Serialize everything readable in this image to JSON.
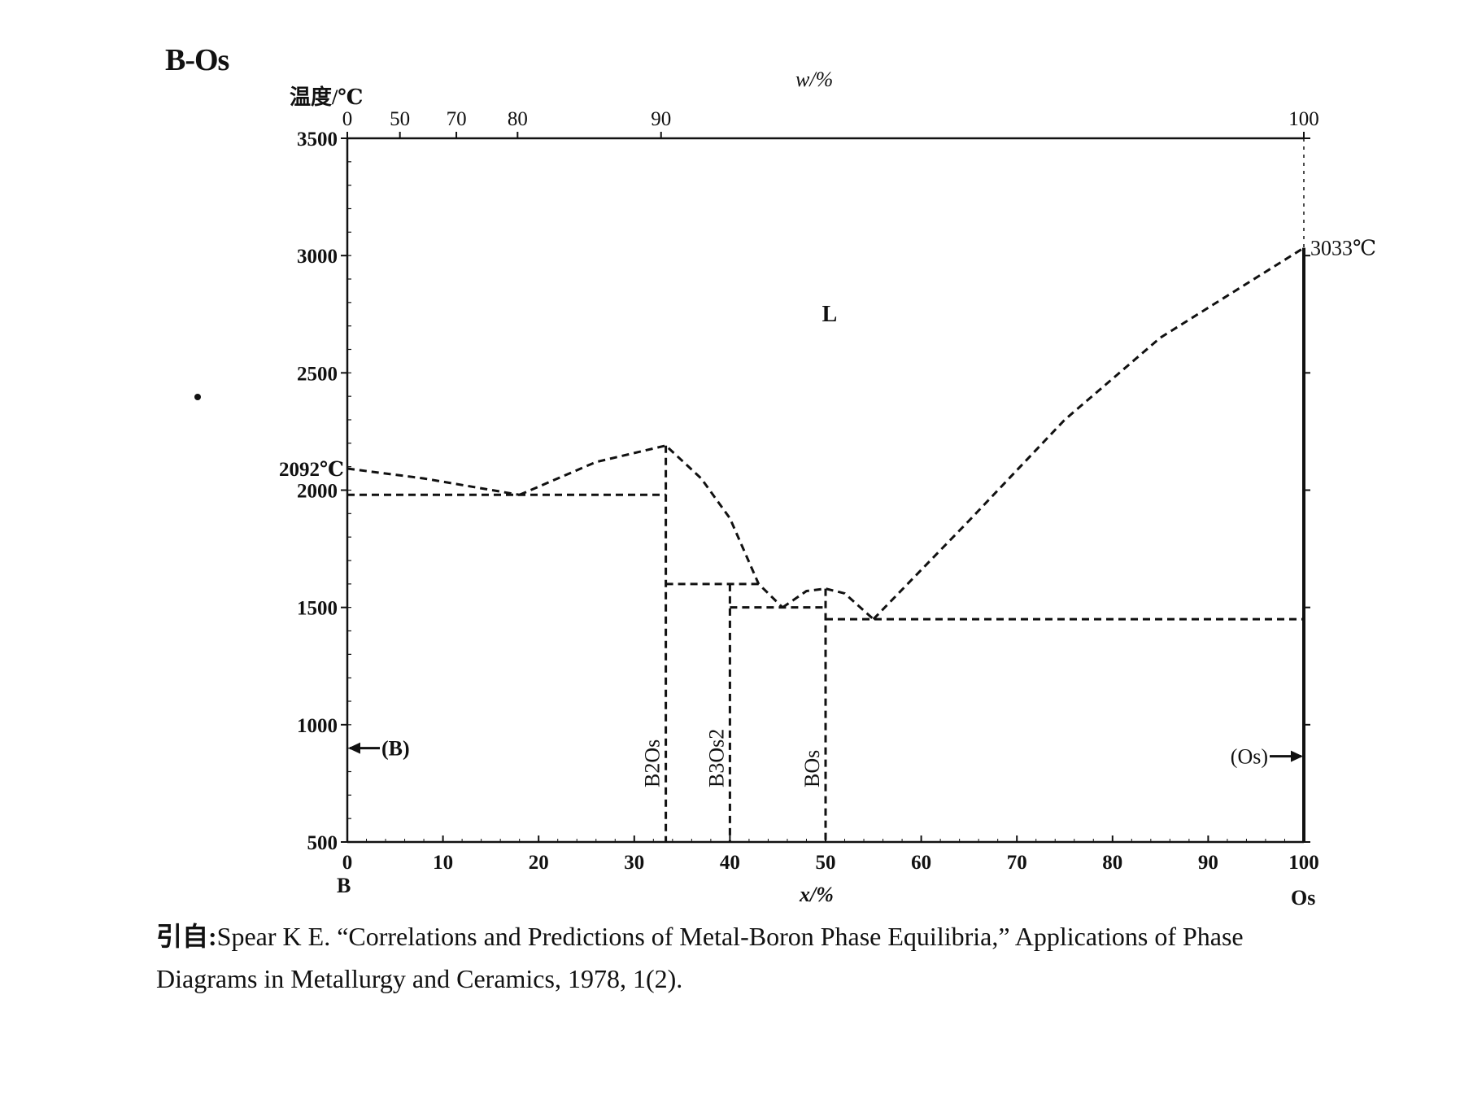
{
  "title": "B-Os",
  "chart_data": {
    "type": "line",
    "title": "B-Os",
    "ylabel": "温度/℃",
    "xlabel_bottom": "x/%",
    "xlabel_top": "w/%",
    "ylim": [
      500,
      3500
    ],
    "xlim": [
      0,
      100
    ],
    "y_ticks": [
      500,
      1000,
      1500,
      2000,
      2500,
      3000,
      3500
    ],
    "x_ticks": [
      0,
      10,
      20,
      30,
      40,
      50,
      60,
      70,
      80,
      90,
      100
    ],
    "top_ticks": [
      {
        "label": "0",
        "x": 0
      },
      {
        "label": "50",
        "x": 5.5
      },
      {
        "label": "70",
        "x": 11.4
      },
      {
        "label": "80",
        "x": 17.8
      },
      {
        "label": "90",
        "x": 32.8
      },
      {
        "label": "100",
        "x": 100
      }
    ],
    "end_labels": {
      "left": "B",
      "right": "Os"
    },
    "melting_points": [
      {
        "label": "2092℃",
        "x": 0,
        "y": 2092
      },
      {
        "label": "3033℃",
        "x": 100,
        "y": 3033
      }
    ],
    "region_labels": [
      {
        "label": "L",
        "x": 50,
        "y": 2720
      }
    ],
    "compounds": [
      {
        "name": "B2Os",
        "sub": "2",
        "base": "B",
        "rest": "Os",
        "x": 33.3,
        "y_top": 2190
      },
      {
        "name": "B3Os2",
        "x": 40,
        "y_top": 1600
      },
      {
        "name": "BOs",
        "x": 50,
        "y_top": 1580
      }
    ],
    "solid_solutions": [
      {
        "label": "(B)",
        "side": "left",
        "y": 900
      },
      {
        "label": "(Os)",
        "side": "right",
        "y": 900
      }
    ],
    "liquidus": [
      [
        [
          0,
          2092
        ],
        [
          8,
          2050
        ],
        [
          18,
          1980
        ]
      ],
      [
        [
          18,
          1980
        ],
        [
          26,
          2120
        ],
        [
          33.3,
          2190
        ],
        [
          37,
          2050
        ],
        [
          40,
          1880
        ],
        [
          43,
          1600
        ],
        [
          45.5,
          1500
        ]
      ],
      [
        [
          45.5,
          1500
        ],
        [
          48,
          1570
        ],
        [
          50,
          1580
        ],
        [
          52,
          1560
        ],
        [
          55,
          1450
        ]
      ],
      [
        [
          55,
          1450
        ],
        [
          65,
          1870
        ],
        [
          75,
          2300
        ],
        [
          85,
          2650
        ],
        [
          100,
          3033
        ]
      ]
    ],
    "isotherms": [
      {
        "y": 1980,
        "x1": 0,
        "x2": 33.3
      },
      {
        "y": 1600,
        "x1": 33.3,
        "x2": 43
      },
      {
        "y": 1500,
        "x1": 40,
        "x2": 50
      },
      {
        "y": 1450,
        "x1": 50,
        "x2": 100
      }
    ]
  },
  "caption": {
    "prefix": "引自:",
    "line1": "Spear K E. “Correlations and Predictions of Metal-Boron Phase Equilibria,” Applications of Phase",
    "line2": "Diagrams in Metallurgy and Ceramics, 1978, 1(2)."
  }
}
